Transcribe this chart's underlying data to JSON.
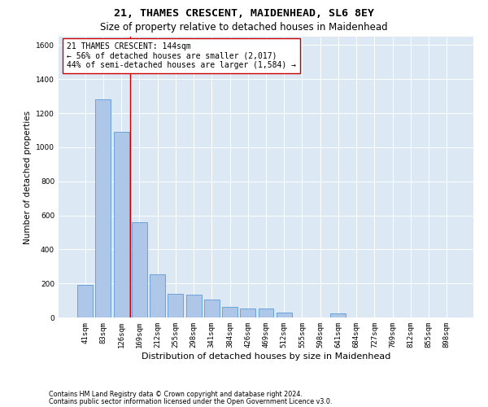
{
  "title": "21, THAMES CRESCENT, MAIDENHEAD, SL6 8EY",
  "subtitle": "Size of property relative to detached houses in Maidenhead",
  "xlabel": "Distribution of detached houses by size in Maidenhead",
  "ylabel": "Number of detached properties",
  "footnote1": "Contains HM Land Registry data © Crown copyright and database right 2024.",
  "footnote2": "Contains public sector information licensed under the Open Government Licence v3.0.",
  "categories": [
    "41sqm",
    "83sqm",
    "126sqm",
    "169sqm",
    "212sqm",
    "255sqm",
    "298sqm",
    "341sqm",
    "384sqm",
    "426sqm",
    "469sqm",
    "512sqm",
    "555sqm",
    "598sqm",
    "641sqm",
    "684sqm",
    "727sqm",
    "769sqm",
    "812sqm",
    "855sqm",
    "898sqm"
  ],
  "bar_values": [
    190,
    1280,
    1090,
    560,
    255,
    140,
    135,
    105,
    60,
    55,
    55,
    30,
    0,
    0,
    25,
    0,
    0,
    0,
    0,
    0,
    0
  ],
  "bar_color": "#aec6e8",
  "bar_edge_color": "#5b9bd5",
  "vline_color": "#cc0000",
  "annotation_text": "21 THAMES CRESCENT: 144sqm\n← 56% of detached houses are smaller (2,017)\n44% of semi-detached houses are larger (1,584) →",
  "annotation_box_color": "#ffffff",
  "annotation_box_edge_color": "#cc0000",
  "ylim": [
    0,
    1650
  ],
  "yticks": [
    0,
    200,
    400,
    600,
    800,
    1000,
    1200,
    1400,
    1600
  ],
  "bg_color": "#dce9f5",
  "title_fontsize": 9.5,
  "subtitle_fontsize": 8.5,
  "xlabel_fontsize": 8,
  "ylabel_fontsize": 7.5,
  "tick_fontsize": 6.5,
  "annotation_fontsize": 7
}
